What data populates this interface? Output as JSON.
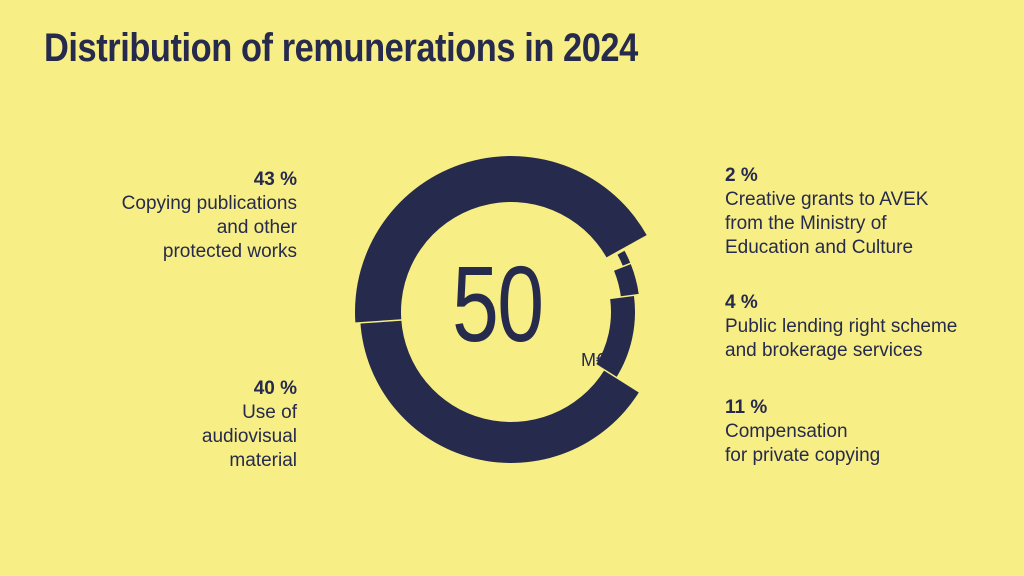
{
  "chart_data": {
    "type": "pie",
    "title": "Distribution of remunerations in 2024",
    "total": "50",
    "total_unit": "M€",
    "colors": {
      "background": "#f7ee85",
      "ring": "#262a4c"
    },
    "slices": [
      {
        "percent_label": "2 %",
        "value": 2,
        "label": "Creative grants to AVEK\nfrom the Ministry of\nEducation and Culture"
      },
      {
        "percent_label": "4 %",
        "value": 4,
        "label": "Public lending right scheme\nand brokerage services"
      },
      {
        "percent_label": "11 %",
        "value": 11,
        "label": "Compensation\nfor private copying"
      },
      {
        "percent_label": "40 %",
        "value": 40,
        "label": "Use of\naudiovisual\nmaterial"
      },
      {
        "percent_label": "43 %",
        "value": 43,
        "label": "Copying publications\nand other\nprotected works"
      }
    ]
  }
}
